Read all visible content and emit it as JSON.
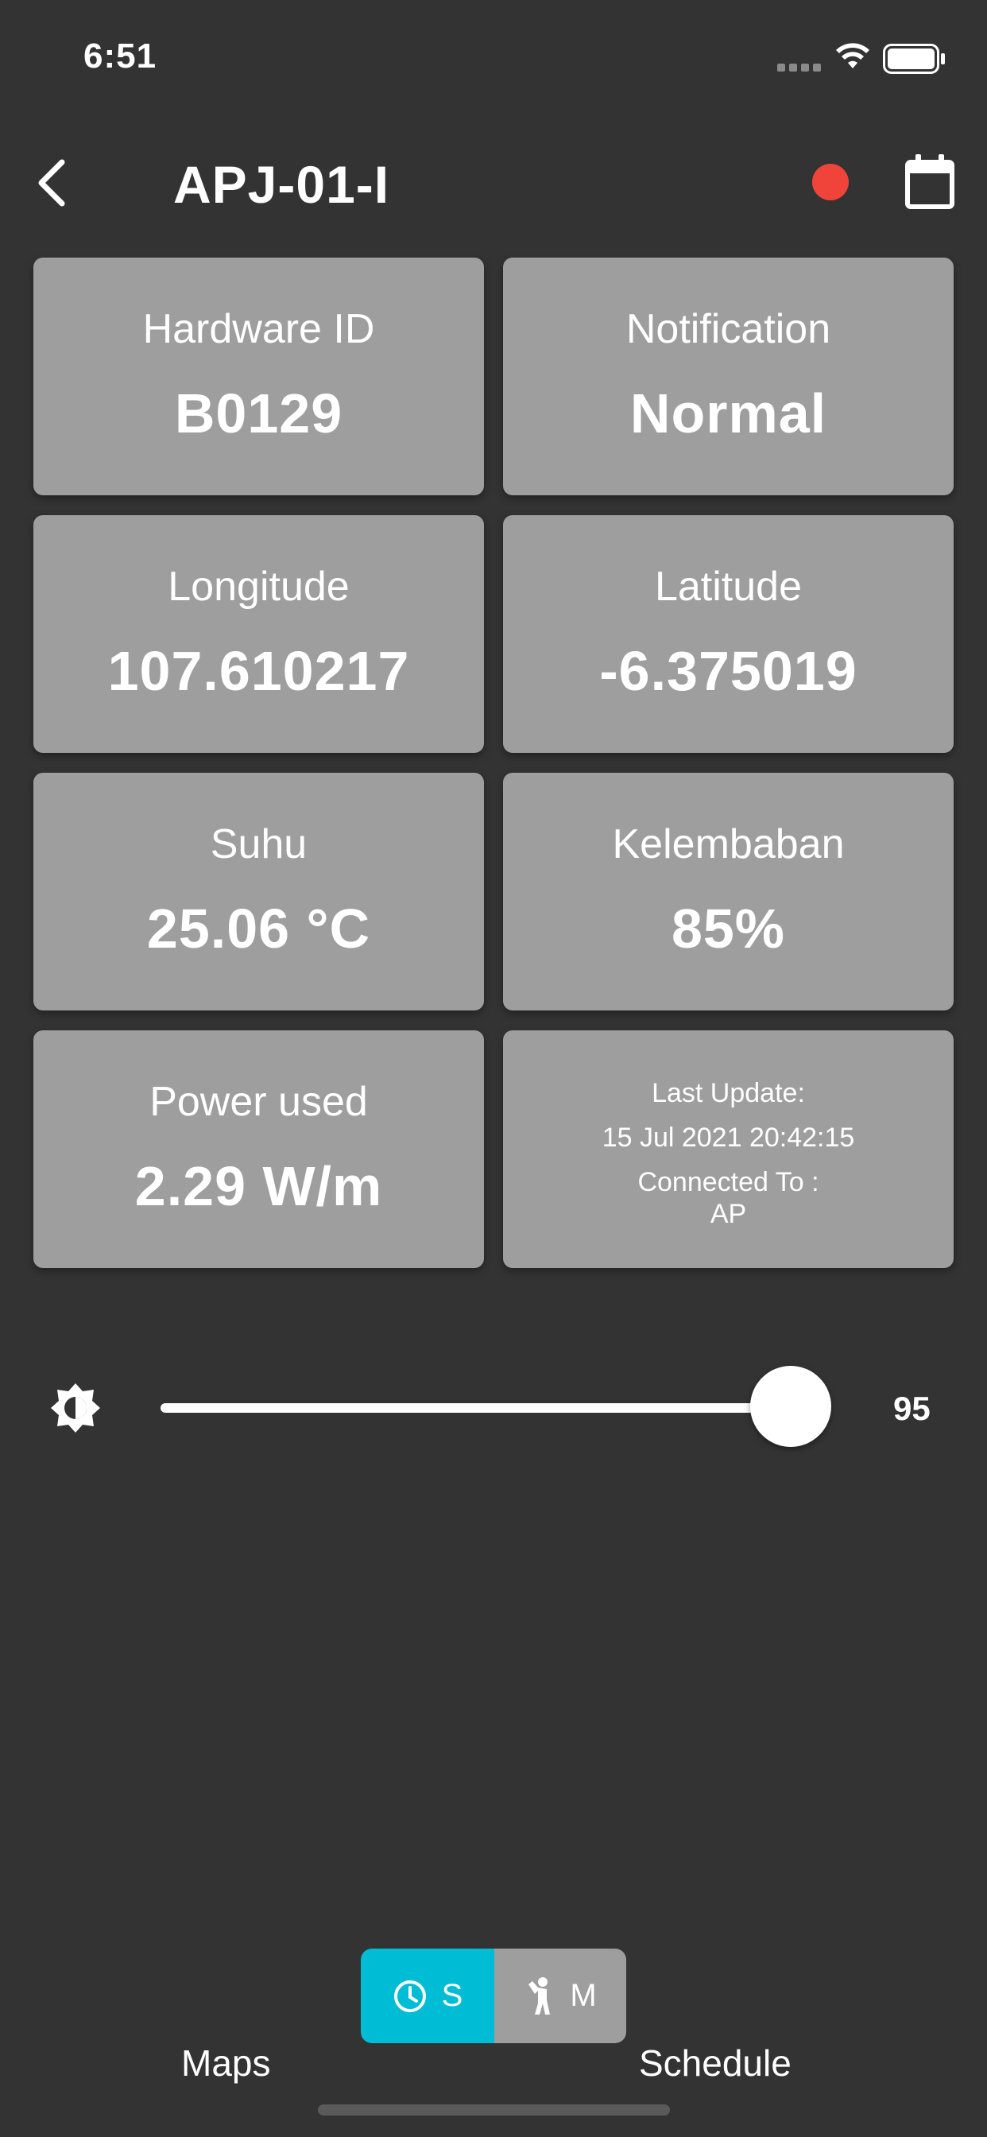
{
  "status_bar": {
    "time": "6:51"
  },
  "header": {
    "title": "APJ-01-I",
    "status_color": "#f0443a"
  },
  "cards": {
    "hardware": {
      "label": "Hardware ID",
      "value": "B0129"
    },
    "notification": {
      "label": "Notification",
      "value": "Normal"
    },
    "longitude": {
      "label": "Longitude",
      "value": "107.610217"
    },
    "latitude": {
      "label": "Latitude",
      "value": "-6.375019"
    },
    "suhu": {
      "label": "Suhu",
      "value": "25.06 °C"
    },
    "kelembaban": {
      "label": "Kelembaban",
      "value": "85%"
    },
    "power": {
      "label": "Power used",
      "value": "2.29 W/m"
    },
    "update": {
      "last_update_label": "Last Update:",
      "last_update_value": "15 Jul 2021 20:42:15",
      "connected_label": "Connected To :",
      "connected_value": "AP"
    }
  },
  "brightness": {
    "value": "95",
    "fraction": 0.95
  },
  "mode_toggle": {
    "s_label": "S",
    "m_label": "M",
    "active": "S",
    "active_color": "#00bcd4"
  },
  "tabs": {
    "maps": "Maps",
    "schedule": "Schedule"
  },
  "icons": [
    "chevron-left-icon",
    "calendar-icon",
    "brightness-icon",
    "clock-icon",
    "person-icon",
    "wifi-icon",
    "battery-icon"
  ]
}
